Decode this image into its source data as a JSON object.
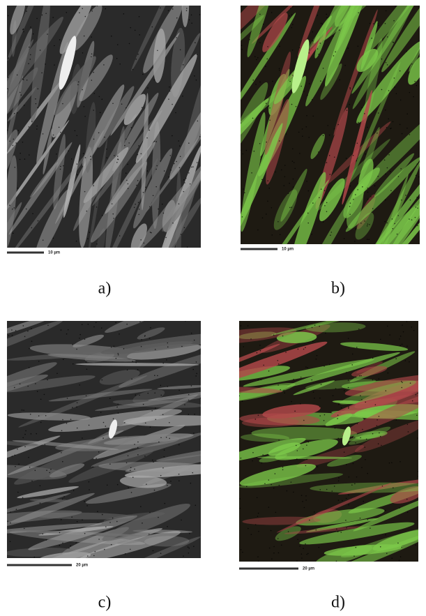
{
  "panels": [
    {
      "label": "a)",
      "scale": "10 µm"
    },
    {
      "label": "b)",
      "scale": "10 µm"
    },
    {
      "label": "c)",
      "scale": "20 µm"
    },
    {
      "label": "d)",
      "scale": "20 µm"
    }
  ]
}
